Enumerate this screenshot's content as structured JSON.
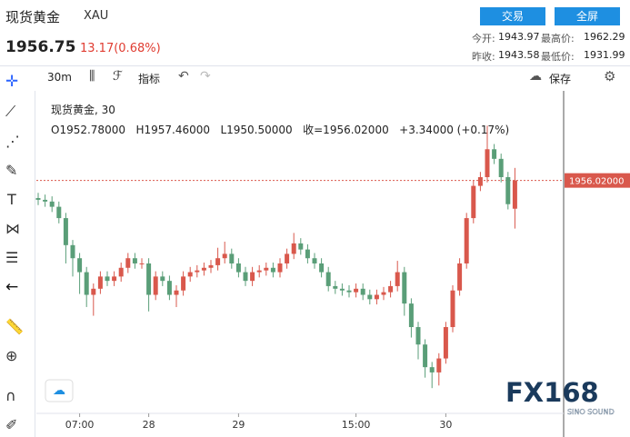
{
  "header": {
    "title": "现货黄金",
    "symbol": "XAU",
    "price": "1956.75",
    "change": "13.17(0.68%)",
    "buttons": [
      "交易",
      "全屏"
    ],
    "stats": [
      {
        "label": "今开:",
        "value": "1943.97"
      },
      {
        "label": "最高价:",
        "value": "1962.29"
      },
      {
        "label": "昨收:",
        "value": "1943.58"
      },
      {
        "label": "最低价:",
        "value": "1931.99"
      }
    ]
  },
  "toolbar": {
    "interval": "30m",
    "indicators": "指标",
    "save": "保存"
  },
  "legend": {
    "name": "现货黄金, 30",
    "open": "O1952.78000",
    "high": "H1957.46000",
    "low": "L1950.50000",
    "close": "收=1956.02000",
    "change": "+3.34000 (+0.17%)"
  },
  "watermark": {
    "brand": "FX168",
    "sub": "SINO SOUND"
  },
  "chart_data": {
    "type": "candlestick",
    "up_color": "#d9584c",
    "down_color": "#5a9e78",
    "ylim": [
      1929.3,
      1966.3
    ],
    "xticks": [
      {
        "value": 6,
        "label": "07:00"
      },
      {
        "value": 16,
        "label": "28"
      },
      {
        "value": 29,
        "label": "29"
      },
      {
        "value": 46,
        "label": "15:00"
      },
      {
        "value": 59,
        "label": "30"
      }
    ],
    "price_line": {
      "value": 1956.02,
      "label": "1956.02000"
    },
    "open": [
      1954.0,
      1953.8,
      1953.6,
      1953.0,
      1951.7,
      1948.6,
      1947.1,
      1945.5,
      1942.9,
      1943.6,
      1945.0,
      1944.5,
      1945.0,
      1946.0,
      1947.1,
      1946.5,
      1946.5,
      1942.9,
      1945.0,
      1944.5,
      1942.9,
      1943.4,
      1945.0,
      1945.5,
      1945.7,
      1946.0,
      1946.3,
      1947.1,
      1947.6,
      1946.5,
      1945.5,
      1944.5,
      1945.5,
      1945.7,
      1946.0,
      1945.5,
      1946.5,
      1947.6,
      1948.8,
      1948.1,
      1947.1,
      1946.5,
      1945.5,
      1943.9,
      1943.6,
      1943.4,
      1943.2,
      1943.6,
      1942.9,
      1942.4,
      1942.9,
      1943.2,
      1943.9,
      1945.5,
      1941.9,
      1939.2,
      1937.2,
      1934.6,
      1934.0,
      1935.6,
      1939.2,
      1943.4,
      1946.5,
      1951.7,
      1955.4,
      1956.4,
      1959.6,
      1958.5,
      1956.4,
      1952.78
    ],
    "high": [
      1954.6,
      1954.4,
      1954.2,
      1953.6,
      1952.3,
      1949.2,
      1947.7,
      1946.1,
      1944.2,
      1945.6,
      1945.6,
      1945.6,
      1946.6,
      1947.7,
      1947.7,
      1947.1,
      1947.1,
      1945.6,
      1945.6,
      1945.1,
      1944.0,
      1945.6,
      1946.1,
      1946.3,
      1946.6,
      1946.9,
      1948.3,
      1949.0,
      1948.2,
      1947.1,
      1946.1,
      1946.1,
      1946.3,
      1946.6,
      1946.6,
      1947.1,
      1948.2,
      1950.0,
      1949.4,
      1948.7,
      1947.7,
      1947.1,
      1946.1,
      1944.5,
      1944.2,
      1944.0,
      1944.2,
      1944.2,
      1943.5,
      1943.5,
      1943.8,
      1944.5,
      1946.8,
      1946.1,
      1942.5,
      1939.8,
      1937.8,
      1935.2,
      1936.2,
      1939.8,
      1944.0,
      1947.1,
      1952.3,
      1956.0,
      1957.0,
      1962.3,
      1960.2,
      1959.1,
      1957.0,
      1957.46
    ],
    "low": [
      1953.2,
      1953.0,
      1952.4,
      1951.1,
      1946.5,
      1945.0,
      1943.0,
      1941.5,
      1940.5,
      1943.0,
      1943.9,
      1943.9,
      1944.4,
      1945.4,
      1945.9,
      1945.9,
      1941.0,
      1942.3,
      1943.9,
      1942.3,
      1941.5,
      1942.8,
      1944.4,
      1944.9,
      1945.1,
      1945.4,
      1945.7,
      1946.5,
      1945.9,
      1944.9,
      1943.9,
      1943.9,
      1944.9,
      1945.1,
      1944.9,
      1944.9,
      1945.9,
      1947.0,
      1947.5,
      1946.5,
      1945.9,
      1944.9,
      1943.3,
      1943.0,
      1942.8,
      1942.6,
      1942.6,
      1942.3,
      1941.8,
      1941.8,
      1942.3,
      1942.6,
      1943.3,
      1940.5,
      1938.0,
      1935.5,
      1933.4,
      1932.2,
      1932.5,
      1935.0,
      1938.6,
      1942.8,
      1945.9,
      1951.1,
      1954.8,
      1955.8,
      1957.9,
      1955.8,
      1952.7,
      1950.5
    ],
    "close": [
      1953.8,
      1953.6,
      1953.0,
      1951.7,
      1948.6,
      1947.1,
      1945.5,
      1942.9,
      1943.6,
      1945.0,
      1944.5,
      1945.0,
      1946.0,
      1947.1,
      1946.5,
      1946.5,
      1942.9,
      1945.0,
      1944.5,
      1942.9,
      1943.4,
      1945.0,
      1945.5,
      1945.7,
      1946.0,
      1946.3,
      1947.1,
      1947.6,
      1946.5,
      1945.5,
      1944.5,
      1945.5,
      1945.7,
      1946.0,
      1945.5,
      1946.5,
      1947.6,
      1948.8,
      1948.1,
      1947.1,
      1946.5,
      1945.5,
      1943.9,
      1943.6,
      1943.4,
      1943.2,
      1943.6,
      1942.9,
      1942.4,
      1942.9,
      1943.2,
      1943.9,
      1945.5,
      1941.9,
      1939.2,
      1937.2,
      1934.6,
      1934.0,
      1935.6,
      1939.2,
      1943.4,
      1946.5,
      1951.7,
      1955.4,
      1956.4,
      1959.6,
      1958.5,
      1956.4,
      1953.3,
      1956.02
    ]
  }
}
